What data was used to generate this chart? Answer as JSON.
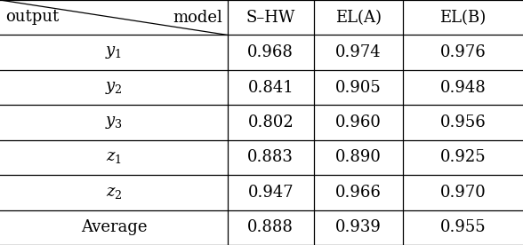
{
  "col_headers": [
    "S–HW",
    "EL(A)",
    "EL(B)"
  ],
  "row_labels": [
    "$y_1$",
    "$y_2$",
    "$y_3$",
    "$z_1$",
    "$z_2$",
    "Average"
  ],
  "values": [
    [
      "0.968",
      "0.974",
      "0.976"
    ],
    [
      "0.841",
      "0.905",
      "0.948"
    ],
    [
      "0.802",
      "0.960",
      "0.956"
    ],
    [
      "0.883",
      "0.890",
      "0.925"
    ],
    [
      "0.947",
      "0.966",
      "0.970"
    ],
    [
      "0.888",
      "0.939",
      "0.955"
    ]
  ],
  "header_label_top": "model",
  "header_label_bottom": "output",
  "bg_color": "#ffffff",
  "line_color": "#000000",
  "fontsize": 13,
  "fig_width": 5.88,
  "fig_height": 2.76,
  "dpi": 100,
  "col_boundaries": [
    0.0,
    0.435,
    0.6,
    0.77,
    1.0
  ]
}
